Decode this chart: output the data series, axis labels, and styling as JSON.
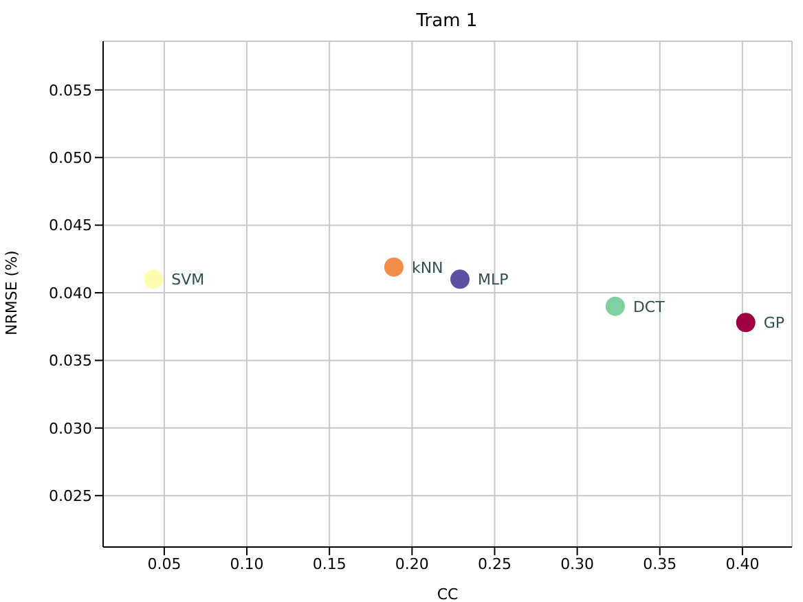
{
  "chart_data": {
    "type": "scatter",
    "title": "Tram 1",
    "xlabel": "CC",
    "ylabel": "NRMSE (%)",
    "xlim": [
      0.013,
      0.43
    ],
    "xticks": [
      0.05,
      {
        "value": 0.1,
        "label": "0.10"
      },
      0.15,
      {
        "value": 0.2,
        "label": "0.20"
      },
      0.25,
      {
        "value": 0.3,
        "label": "0.30"
      },
      0.35,
      {
        "value": 0.4,
        "label": "0.40"
      }
    ],
    "ylim": [
      0.0212,
      0.0586
    ],
    "yticks": [
      0.025,
      {
        "value": 0.03,
        "label": "0.030"
      },
      0.035,
      {
        "value": 0.04,
        "label": "0.040"
      },
      0.045,
      {
        "value": 0.05,
        "label": "0.050"
      },
      0.055
    ],
    "grid": true,
    "legend": false,
    "marker": "circle",
    "series": [
      {
        "name": "SVM",
        "color": "#fefeb0",
        "x": [
          0.0435
        ],
        "values": [
          0.041
        ]
      },
      {
        "name": "kNN",
        "color": "#f48d47",
        "x": [
          0.189
        ],
        "values": [
          0.0419
        ]
      },
      {
        "name": "MLP",
        "color": "#5e4fa2",
        "x": [
          0.229
        ],
        "values": [
          0.041
        ]
      },
      {
        "name": "DCT",
        "color": "#80cfa0",
        "x": [
          0.323
        ],
        "values": [
          0.039
        ]
      },
      {
        "name": "GP",
        "color": "#9e0142",
        "x": [
          0.402
        ],
        "values": [
          0.0378
        ]
      }
    ]
  }
}
